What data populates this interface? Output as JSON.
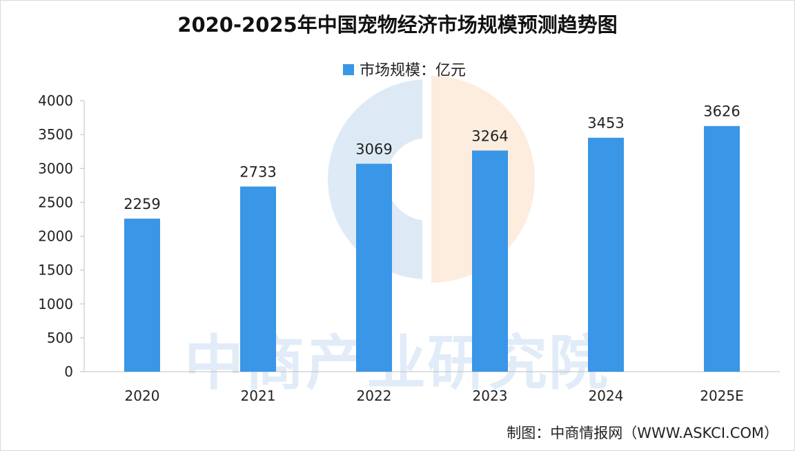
{
  "chart_data": {
    "type": "bar",
    "title": "2020-2025年中国宠物经济市场规模预测趋势图",
    "categories": [
      "2020",
      "2021",
      "2022",
      "2023",
      "2024",
      "2025E"
    ],
    "series": [
      {
        "name": "市场规模：亿元",
        "values": [
          2259,
          2733,
          3069,
          3264,
          3453,
          3626
        ]
      }
    ],
    "yticks": [
      "4000",
      "3500",
      "3000",
      "2500",
      "2000",
      "1500",
      "1000",
      "500",
      "0"
    ],
    "ylim": [
      0,
      4000
    ],
    "grid": false,
    "legend_position": "top-center",
    "bar_color": "#3a96e6",
    "data_labels": true
  },
  "credit": "制图：中商情报网（WWW.ASKCI.COM）",
  "watermark": {
    "text": "中商产业研究院"
  }
}
